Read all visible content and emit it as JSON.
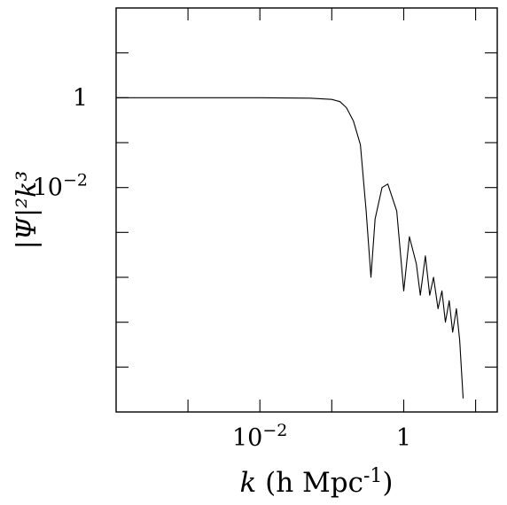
{
  "chart_data": {
    "type": "line",
    "title": "",
    "xlabel": {
      "var": "k",
      "rest": " (h Mpc",
      "sup": "-1",
      "close": ")"
    },
    "ylabel": {
      "text": "|Ψ|²k³"
    },
    "x_scale": "log",
    "y_scale": "log",
    "xlim": [
      0.0001,
      20
    ],
    "ylim": [
      1e-07,
      100
    ],
    "x_tick_labels": [
      {
        "value": 0.01,
        "base": "10",
        "exp": "−2"
      },
      {
        "value": 1,
        "base": "1",
        "exp": ""
      }
    ],
    "y_tick_labels": [
      {
        "value": 1,
        "base": "1",
        "exp": ""
      },
      {
        "value": 0.01,
        "base": "10",
        "exp": "−2"
      }
    ],
    "x_major_ticks": [
      0.001,
      0.01,
      0.1,
      1,
      10
    ],
    "y_major_ticks": [
      10,
      1,
      0.1,
      0.01,
      0.001,
      0.0001,
      1e-05,
      1e-06
    ],
    "grid": false,
    "series": [
      {
        "x": [
          0.0001,
          0.001,
          0.01,
          0.05,
          0.1,
          0.13,
          0.16,
          0.2,
          0.25,
          0.3,
          0.35,
          0.4,
          0.5,
          0.6,
          0.8,
          1.0,
          1.2,
          1.5,
          1.7,
          2.0,
          2.3,
          2.6,
          3.0,
          3.4,
          3.8,
          4.3,
          4.8,
          5.4,
          6.0,
          6.7
        ],
        "y": [
          1.0,
          1.0,
          1.0,
          0.98,
          0.92,
          0.82,
          0.6,
          0.3,
          0.09,
          0.003,
          0.0001,
          0.002,
          0.01,
          0.012,
          0.003,
          5e-05,
          0.0008,
          0.0002,
          4e-05,
          0.0003,
          4e-05,
          0.0001,
          2e-05,
          5e-05,
          1e-05,
          3e-05,
          6e-06,
          2e-05,
          4e-06,
          2e-07
        ]
      }
    ]
  }
}
